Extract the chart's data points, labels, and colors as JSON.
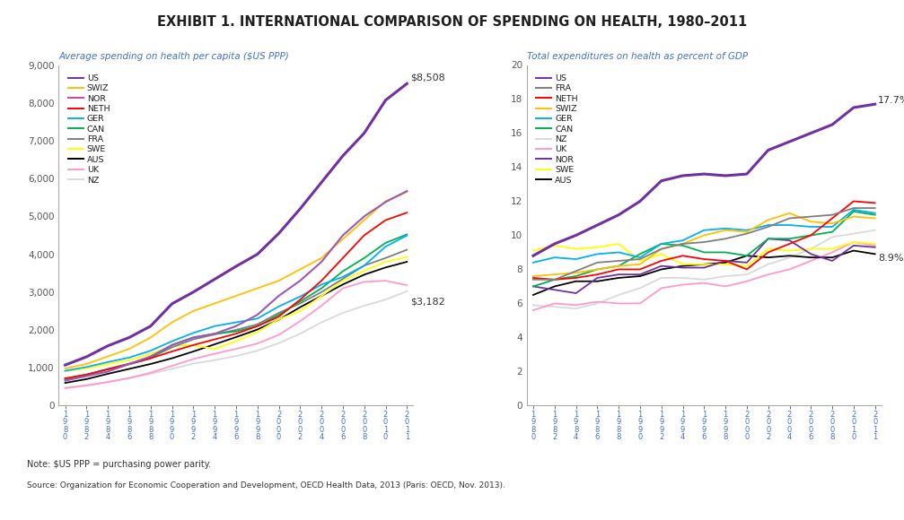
{
  "title": "EXHIBIT 1. INTERNATIONAL COMPARISON OF SPENDING ON HEALTH, 1980–2011",
  "subtitle_left": "Average spending on health per capita ($US PPP)",
  "subtitle_right": "Total expenditures on health as percent of GDP",
  "note": "Note: $US PPP = purchasing power parity.",
  "source": "Source: Organization for Economic Cooperation and Development, OECD Health Data, 2013 (Paris: OECD, Nov. 2013).",
  "years": [
    1980,
    1982,
    1984,
    1986,
    1988,
    1990,
    1992,
    1994,
    1996,
    1998,
    2000,
    2002,
    2004,
    2006,
    2008,
    2010,
    2011
  ],
  "left_label_end": "$8,508",
  "right_label_end": "$3,182",
  "left_pct_end": "17.7%",
  "right_pct_end": "8.9%",
  "spending": {
    "US": [
      1072,
      1290,
      1580,
      1800,
      2100,
      2690,
      3000,
      3340,
      3680,
      4000,
      4550,
      5200,
      5900,
      6600,
      7200,
      8070,
      8508
    ],
    "SWIZ": [
      980,
      1100,
      1300,
      1500,
      1800,
      2200,
      2500,
      2700,
      2900,
      3100,
      3300,
      3600,
      3900,
      4400,
      4900,
      5400,
      5643
    ],
    "NOR": [
      660,
      780,
      900,
      1100,
      1300,
      1600,
      1800,
      1900,
      2100,
      2400,
      2900,
      3300,
      3800,
      4500,
      5000,
      5380,
      5669
    ],
    "NETH": [
      720,
      820,
      960,
      1100,
      1250,
      1430,
      1600,
      1750,
      1900,
      2100,
      2350,
      2800,
      3300,
      3900,
      4500,
      4900,
      5099
    ],
    "GER": [
      920,
      1020,
      1150,
      1270,
      1450,
      1700,
      1920,
      2100,
      2200,
      2300,
      2620,
      2880,
      3200,
      3400,
      3700,
      4200,
      4495
    ],
    "CAN": [
      710,
      820,
      960,
      1090,
      1250,
      1600,
      1800,
      1900,
      1960,
      2100,
      2400,
      2750,
      3100,
      3550,
      3900,
      4300,
      4522
    ],
    "FRA": [
      690,
      810,
      970,
      1110,
      1270,
      1540,
      1750,
      1880,
      2000,
      2150,
      2450,
      2700,
      3000,
      3350,
      3700,
      3900,
      4118
    ],
    "SWE": [
      910,
      980,
      1100,
      1200,
      1370,
      1570,
      1600,
      1500,
      1700,
      1950,
      2280,
      2500,
      2900,
      3300,
      3560,
      3800,
      3925
    ],
    "AUS": [
      600,
      700,
      840,
      970,
      1100,
      1250,
      1430,
      1620,
      1810,
      2010,
      2270,
      2600,
      2900,
      3200,
      3460,
      3650,
      3800
    ],
    "UK": [
      460,
      530,
      620,
      730,
      870,
      1050,
      1230,
      1370,
      1500,
      1640,
      1870,
      2230,
      2640,
      3100,
      3270,
      3300,
      3182
    ],
    "NZ": [
      470,
      540,
      630,
      720,
      840,
      970,
      1110,
      1200,
      1310,
      1450,
      1650,
      1900,
      2200,
      2450,
      2640,
      2800,
      3022
    ]
  },
  "gdp_pct": {
    "US": [
      8.8,
      9.5,
      10.0,
      10.6,
      11.2,
      12.0,
      13.2,
      13.5,
      13.6,
      13.5,
      13.6,
      15.0,
      15.5,
      16.0,
      16.5,
      17.5,
      17.7
    ],
    "FRA": [
      7.4,
      7.4,
      7.9,
      8.4,
      8.5,
      8.6,
      9.2,
      9.5,
      9.6,
      9.8,
      10.1,
      10.5,
      11.0,
      11.1,
      11.2,
      11.6,
      11.6
    ],
    "NETH": [
      7.5,
      7.4,
      7.5,
      7.7,
      8.0,
      8.0,
      8.5,
      8.8,
      8.6,
      8.5,
      8.0,
      9.0,
      9.5,
      10.0,
      11.0,
      12.0,
      11.9
    ],
    "SWIZ": [
      7.6,
      7.7,
      7.8,
      8.0,
      8.2,
      8.3,
      9.2,
      9.5,
      10.0,
      10.3,
      10.2,
      10.9,
      11.3,
      10.8,
      10.7,
      11.1,
      11.0
    ],
    "GER": [
      8.4,
      8.7,
      8.6,
      8.9,
      9.0,
      8.7,
      9.5,
      9.7,
      10.3,
      10.4,
      10.3,
      10.6,
      10.6,
      10.5,
      10.5,
      11.5,
      11.3
    ],
    "CAN": [
      7.0,
      7.4,
      7.6,
      8.0,
      8.2,
      8.9,
      9.5,
      9.4,
      9.0,
      9.0,
      8.8,
      9.8,
      9.8,
      10.0,
      10.2,
      11.4,
      11.2
    ],
    "NZ": [
      5.9,
      5.8,
      5.7,
      6.0,
      6.5,
      6.9,
      7.5,
      7.5,
      7.4,
      7.6,
      7.7,
      8.3,
      8.7,
      9.2,
      9.9,
      10.1,
      10.3
    ],
    "UK": [
      5.6,
      6.0,
      5.9,
      6.1,
      6.0,
      6.0,
      6.9,
      7.1,
      7.2,
      7.0,
      7.3,
      7.7,
      8.0,
      8.5,
      9.0,
      9.6,
      9.4
    ],
    "NOR": [
      7.0,
      6.8,
      6.6,
      7.5,
      7.7,
      7.7,
      8.2,
      8.1,
      8.1,
      8.5,
      8.4,
      9.8,
      9.7,
      8.9,
      8.5,
      9.4,
      9.3
    ],
    "SWE": [
      9.1,
      9.4,
      9.2,
      9.3,
      9.5,
      8.5,
      8.9,
      8.3,
      8.3,
      8.3,
      8.2,
      9.2,
      9.1,
      9.2,
      9.2,
      9.6,
      9.5
    ],
    "AUS": [
      6.5,
      7.0,
      7.3,
      7.3,
      7.5,
      7.6,
      8.0,
      8.2,
      8.3,
      8.4,
      8.8,
      8.7,
      8.8,
      8.7,
      8.7,
      9.1,
      8.9
    ]
  },
  "left_colors": {
    "US": "#7030A0",
    "SWIZ": "#FFC000",
    "NOR": "#7030A0",
    "NETH": "#FF0000",
    "GER": "#00B0F0",
    "CAN": "#00B050",
    "FRA": "#7F7F7F",
    "SWE": "#FFFF00",
    "AUS": "#000000",
    "UK": "#FF99CC",
    "NZ": "#D9D9D9"
  },
  "right_colors": {
    "US": "#7030A0",
    "FRA": "#7F7F7F",
    "NETH": "#FF0000",
    "SWIZ": "#FFC000",
    "GER": "#00B0F0",
    "CAN": "#00B050",
    "NZ": "#D9D9D9",
    "UK": "#FF99CC",
    "NOR": "#7030A0",
    "SWE": "#FFFF00",
    "AUS": "#000000"
  },
  "left_ylim": [
    0,
    9000
  ],
  "left_yticks": [
    0,
    1000,
    2000,
    3000,
    4000,
    5000,
    6000,
    7000,
    8000,
    9000
  ],
  "right_ylim": [
    0,
    20
  ],
  "right_yticks": [
    0,
    2,
    4,
    6,
    8,
    10,
    12,
    14,
    16,
    18,
    20
  ],
  "background_color": "#FFFFFF",
  "title_color": "#1F1F1F",
  "subtitle_color": "#4472C4",
  "axis_color": "#555555",
  "tick_color": "#4472C4",
  "note_color": "#333333"
}
